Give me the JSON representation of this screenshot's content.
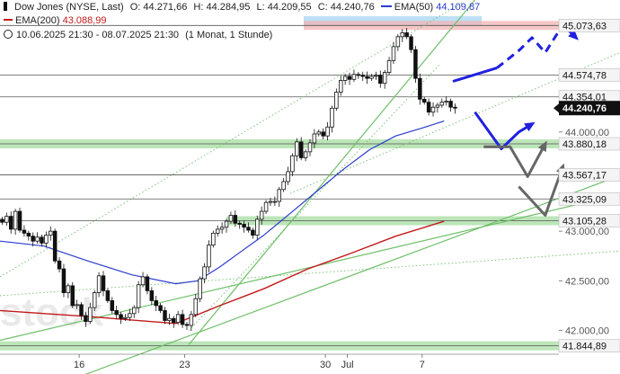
{
  "header": {
    "instrument": "Dow Jones (NYSE, Last)",
    "ohlc": [
      {
        "label": "O:",
        "value": "44.271,66"
      },
      {
        "label": "H:",
        "value": "44.284,95"
      },
      {
        "label": "L:",
        "value": "44.209,55"
      },
      {
        "label": "C:",
        "value": "44.240,76"
      }
    ],
    "ema50_label": "EMA(50)",
    "ema50_value": "44.109,87",
    "ema200_label": "EMA(200)",
    "ema200_value": "43.088,99",
    "date_range": "10.06.2025 21:30 - 08.07.2025 21:30",
    "period": "(1 Monat, 1 Stunde)"
  },
  "colors": {
    "ema50": "#2a3ccf",
    "ema200": "#c21a1a",
    "candle_up": "#ffffff",
    "candle_down": "#111111",
    "support_zone": "#a6dca0",
    "resistance_zone": "#f2b4b4",
    "highlight_zone": "#bde0f5",
    "trendline": "#6fbf6a",
    "scenario_up": "#2020e0",
    "scenario_down": "#666666"
  },
  "watermark": "stock",
  "chart_data": {
    "type": "candlestick",
    "ylim": [
      41760,
      45330
    ],
    "y_ticks": [
      {
        "value": 42000,
        "label": "42.000,00"
      },
      {
        "value": 42500,
        "label": "42.500,00"
      },
      {
        "value": 43000,
        "label": "43.000,00"
      },
      {
        "value": 44000,
        "label": "44.000,00"
      }
    ],
    "x_ticks": [
      {
        "index": 18,
        "label": "16"
      },
      {
        "index": 42,
        "label": "23"
      },
      {
        "index": 74,
        "label": "30"
      },
      {
        "index": 79,
        "label": "Jul"
      },
      {
        "index": 96,
        "label": "7"
      }
    ],
    "x_range": [
      0,
      141
    ],
    "price_levels": [
      {
        "value": 45073.63,
        "label": "45.073,63",
        "zone": "resistance"
      },
      {
        "value": 44574.78,
        "label": "44.574,78",
        "zone": "none"
      },
      {
        "value": 44354.01,
        "label": "44.354,01",
        "zone": "none"
      },
      {
        "value": 43880.18,
        "label": "43.880,18",
        "zone": "support"
      },
      {
        "value": 43567.17,
        "label": "43.567,17",
        "zone": "none"
      },
      {
        "value": 43325.09,
        "label": "43.325,09",
        "zone": "none"
      },
      {
        "value": 43105.28,
        "label": "43.105,28",
        "zone": "support"
      },
      {
        "value": 41844.89,
        "label": "41.844,89",
        "zone": "support"
      }
    ],
    "last_price": {
      "value": 44240.76,
      "label": "44.240,76"
    },
    "close_series": [
      43090,
      43150,
      43020,
      43200,
      43010,
      42980,
      42950,
      42900,
      42940,
      42880,
      42960,
      43000,
      42700,
      42620,
      42380,
      42450,
      42250,
      42260,
      42150,
      42090,
      42230,
      42380,
      42550,
      42400,
      42300,
      42200,
      42160,
      42120,
      42130,
      42170,
      42230,
      42460,
      42540,
      42400,
      42300,
      42250,
      42200,
      42100,
      42120,
      42080,
      42160,
      42060,
      42050,
      42160,
      42320,
      42520,
      42640,
      42860,
      42980,
      43020,
      43040,
      43100,
      43160,
      43080,
      43070,
      43040,
      43010,
      42960,
      43120,
      43200,
      43290,
      43300,
      43300,
      43420,
      43500,
      43600,
      43760,
      43900,
      43740,
      43800,
      43890,
      43980,
      44000,
      43960,
      44050,
      44240,
      44400,
      44520,
      44560,
      44530,
      44580,
      44570,
      44560,
      44540,
      44560,
      44570,
      44490,
      44600,
      44720,
      44860,
      44960,
      45000,
      44960,
      44830,
      44540,
      44330,
      44300,
      44200,
      44250,
      44270,
      44300,
      44310,
      44250,
      44240
    ],
    "ema50": [
      [
        0,
        42900
      ],
      [
        10,
        42850
      ],
      [
        20,
        42700
      ],
      [
        30,
        42560
      ],
      [
        40,
        42470
      ],
      [
        45,
        42500
      ],
      [
        50,
        42640
      ],
      [
        55,
        42800
      ],
      [
        60,
        42960
      ],
      [
        66,
        43180
      ],
      [
        72,
        43400
      ],
      [
        78,
        43620
      ],
      [
        84,
        43820
      ],
      [
        90,
        43960
      ],
      [
        96,
        44040
      ],
      [
        101,
        44110
      ]
    ],
    "ema200": [
      [
        0,
        42200
      ],
      [
        20,
        42140
      ],
      [
        40,
        42070
      ],
      [
        50,
        42250
      ],
      [
        60,
        42420
      ],
      [
        70,
        42620
      ],
      [
        80,
        42780
      ],
      [
        90,
        42950
      ],
      [
        101,
        43100
      ]
    ],
    "trendlines": [
      {
        "from": [
          43,
          41860
        ],
        "to": [
          108,
          45330
        ]
      },
      {
        "from": [
          0,
          41900
        ],
        "to": [
          141,
          43370
        ]
      },
      {
        "from": [
          16,
          41500
        ],
        "to": [
          141,
          43560
        ]
      },
      {
        "from": [
          0,
          42350
        ],
        "to": [
          141,
          42800
        ]
      },
      {
        "from": [
          66,
          43380
        ],
        "to": [
          141,
          44800
        ]
      },
      {
        "from": [
          43,
          42000
        ],
        "to": [
          100,
          44680
        ]
      },
      {
        "from": [
          0,
          42540
        ],
        "to": [
          105,
          45300
        ]
      }
    ],
    "scenario_up": [
      [
        103,
        44510
      ],
      [
        113,
        44645
      ],
      [
        118,
        44820
      ],
      [
        121,
        44950
      ],
      [
        124,
        44800
      ],
      [
        128,
        45080
      ],
      [
        131,
        44950
      ]
    ],
    "scenario_up_dashed_from_index": 2,
    "scenario_down": [
      [
        108,
        44200
      ],
      [
        114,
        43830
      ],
      [
        118,
        44000
      ],
      [
        121,
        44080
      ]
    ],
    "scenario_alt": [
      [
        110,
        43850
      ],
      [
        116,
        43850
      ],
      [
        120,
        43550
      ],
      [
        124,
        43880
      ],
      [
        118,
        43450
      ],
      [
        124,
        43160
      ],
      [
        128,
        43650
      ]
    ]
  }
}
